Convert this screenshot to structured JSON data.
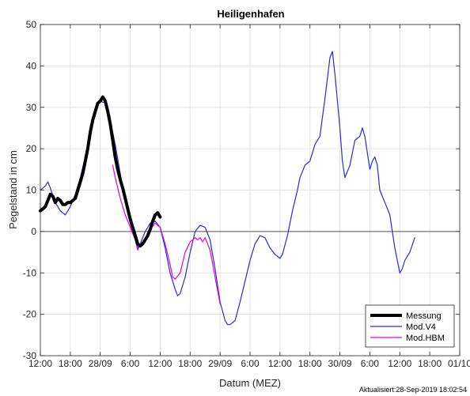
{
  "chart_data": {
    "type": "line",
    "title": "Heiligenhafen",
    "xlabel": "Datum (MEZ)",
    "ylabel": "Pegelstand in cm",
    "xlim": [
      0,
      84
    ],
    "ylim": [
      -30,
      50
    ],
    "x_unit": "hours since 27-Sep-2019 12:00 (MEZ)",
    "x_ticks": [
      {
        "x": 0,
        "label": "12:00"
      },
      {
        "x": 6,
        "label": "18:00"
      },
      {
        "x": 12,
        "label": "28/09"
      },
      {
        "x": 18,
        "label": "6:00"
      },
      {
        "x": 24,
        "label": "12:00"
      },
      {
        "x": 30,
        "label": "18:00"
      },
      {
        "x": 36,
        "label": "29/09"
      },
      {
        "x": 42,
        "label": "6:00"
      },
      {
        "x": 48,
        "label": "12:00"
      },
      {
        "x": 54,
        "label": "18:00"
      },
      {
        "x": 60,
        "label": "30/09"
      },
      {
        "x": 66,
        "label": "6:00"
      },
      {
        "x": 72,
        "label": "12:00"
      },
      {
        "x": 78,
        "label": "18:00"
      },
      {
        "x": 84,
        "label": "01/10"
      }
    ],
    "y_ticks": [
      -30,
      -20,
      -10,
      0,
      10,
      20,
      30,
      40,
      50
    ],
    "grid": true,
    "zero_line": true,
    "legend_position": "bottom-right",
    "series": [
      {
        "name": "Messung",
        "color": "#000000",
        "points": [
          [
            0,
            5
          ],
          [
            0.5,
            5.5
          ],
          [
            1,
            6
          ],
          [
            1.5,
            7.5
          ],
          [
            2,
            9
          ],
          [
            2.5,
            8.5
          ],
          [
            3,
            7
          ],
          [
            3.5,
            8
          ],
          [
            4,
            7.5
          ],
          [
            4.5,
            6.5
          ],
          [
            5,
            6.5
          ],
          [
            5.5,
            7
          ],
          [
            6,
            7
          ],
          [
            6.5,
            7.5
          ],
          [
            7,
            8
          ],
          [
            7.5,
            10
          ],
          [
            8,
            12
          ],
          [
            8.5,
            14
          ],
          [
            9,
            17
          ],
          [
            9.5,
            20
          ],
          [
            10,
            24
          ],
          [
            10.5,
            27
          ],
          [
            11,
            29
          ],
          [
            11.5,
            31
          ],
          [
            12,
            31.5
          ],
          [
            12.5,
            32.5
          ],
          [
            13,
            31.5
          ],
          [
            13.5,
            29
          ],
          [
            14,
            26
          ],
          [
            14.5,
            22
          ],
          [
            15,
            18
          ],
          [
            15.5,
            15
          ],
          [
            16,
            12.5
          ],
          [
            16.5,
            10.5
          ],
          [
            17,
            8
          ],
          [
            17.5,
            5.5
          ],
          [
            18,
            3
          ],
          [
            18.5,
            1
          ],
          [
            19,
            -1
          ],
          [
            19.5,
            -3
          ],
          [
            20,
            -3.5
          ],
          [
            20.5,
            -3
          ],
          [
            21,
            -2
          ],
          [
            21.5,
            -1
          ],
          [
            22,
            0.5
          ],
          [
            22.5,
            2.5
          ],
          [
            23,
            4
          ],
          [
            23.5,
            4.5
          ],
          [
            24,
            3.5
          ]
        ]
      },
      {
        "name": "Mod.V4",
        "color": "#2b2bd9",
        "points": [
          [
            0,
            10
          ],
          [
            1,
            11
          ],
          [
            1.5,
            12
          ],
          [
            2,
            10.5
          ],
          [
            3,
            7
          ],
          [
            4,
            5
          ],
          [
            5,
            4
          ],
          [
            6,
            6
          ],
          [
            7,
            9
          ],
          [
            8,
            13
          ],
          [
            9,
            18
          ],
          [
            10,
            24
          ],
          [
            11,
            29
          ],
          [
            11.5,
            31
          ],
          [
            12,
            31.5
          ],
          [
            13,
            31
          ],
          [
            14,
            27
          ],
          [
            15,
            21
          ],
          [
            16,
            14
          ],
          [
            17,
            7
          ],
          [
            18,
            2
          ],
          [
            19,
            -2
          ],
          [
            19.5,
            -4
          ],
          [
            20,
            -3
          ],
          [
            21,
            0
          ],
          [
            22,
            2
          ],
          [
            23,
            2.5
          ],
          [
            24,
            1
          ],
          [
            25,
            -4
          ],
          [
            26,
            -10
          ],
          [
            27,
            -14
          ],
          [
            27.5,
            -15.5
          ],
          [
            28,
            -15
          ],
          [
            29,
            -11
          ],
          [
            30,
            -5
          ],
          [
            31,
            0
          ],
          [
            32,
            1.5
          ],
          [
            33,
            1
          ],
          [
            34,
            -2
          ],
          [
            35,
            -9
          ],
          [
            36,
            -17
          ],
          [
            37,
            -21.5
          ],
          [
            37.5,
            -22.5
          ],
          [
            38,
            -22.5
          ],
          [
            39,
            -21.5
          ],
          [
            40,
            -17
          ],
          [
            41,
            -12
          ],
          [
            42,
            -7
          ],
          [
            43,
            -3
          ],
          [
            44,
            -1
          ],
          [
            45,
            -1.5
          ],
          [
            46,
            -4
          ],
          [
            47,
            -5.5
          ],
          [
            48,
            -6.5
          ],
          [
            48.5,
            -5.5
          ],
          [
            49.5,
            -1
          ],
          [
            50.5,
            5
          ],
          [
            51.5,
            10
          ],
          [
            52,
            13
          ],
          [
            53,
            16
          ],
          [
            54,
            17
          ],
          [
            55,
            21
          ],
          [
            56,
            23
          ],
          [
            57,
            32
          ],
          [
            58,
            42
          ],
          [
            58.5,
            43.5
          ],
          [
            59,
            38
          ],
          [
            60,
            25
          ],
          [
            60.5,
            17
          ],
          [
            61,
            13
          ],
          [
            62,
            16
          ],
          [
            63,
            22
          ],
          [
            64,
            23
          ],
          [
            64.5,
            25
          ],
          [
            65,
            23
          ],
          [
            66,
            15
          ],
          [
            66.5,
            17
          ],
          [
            67,
            18
          ],
          [
            67.5,
            16
          ],
          [
            68,
            10
          ],
          [
            69,
            7
          ],
          [
            70,
            4
          ],
          [
            71,
            -4
          ],
          [
            72,
            -10
          ],
          [
            72.5,
            -9
          ],
          [
            73,
            -7
          ],
          [
            74,
            -5
          ],
          [
            75,
            -1.5
          ]
        ]
      },
      {
        "name": "Mod.HBM",
        "color": "#e200e2",
        "points": [
          [
            14.5,
            16
          ],
          [
            15,
            13
          ],
          [
            16,
            8
          ],
          [
            17,
            4
          ],
          [
            18,
            1
          ],
          [
            19,
            -2
          ],
          [
            19.5,
            -4.5
          ],
          [
            20,
            -3
          ],
          [
            21,
            -2
          ],
          [
            22,
            0.5
          ],
          [
            23,
            2
          ],
          [
            24,
            1
          ],
          [
            25,
            -3
          ],
          [
            26,
            -8
          ],
          [
            26.5,
            -11
          ],
          [
            27,
            -11.5
          ],
          [
            28,
            -10
          ],
          [
            29,
            -5
          ],
          [
            30,
            -2.5
          ],
          [
            31,
            -1.5
          ],
          [
            31.5,
            -2
          ],
          [
            32,
            -1.5
          ],
          [
            32.5,
            -2.5
          ],
          [
            33,
            -1.5
          ],
          [
            34,
            -4.5
          ],
          [
            35,
            -11
          ],
          [
            36,
            -17.5
          ]
        ]
      }
    ]
  },
  "footer": {
    "updated": "Aktualisiert:28-Sep-2019 18:02:54"
  }
}
